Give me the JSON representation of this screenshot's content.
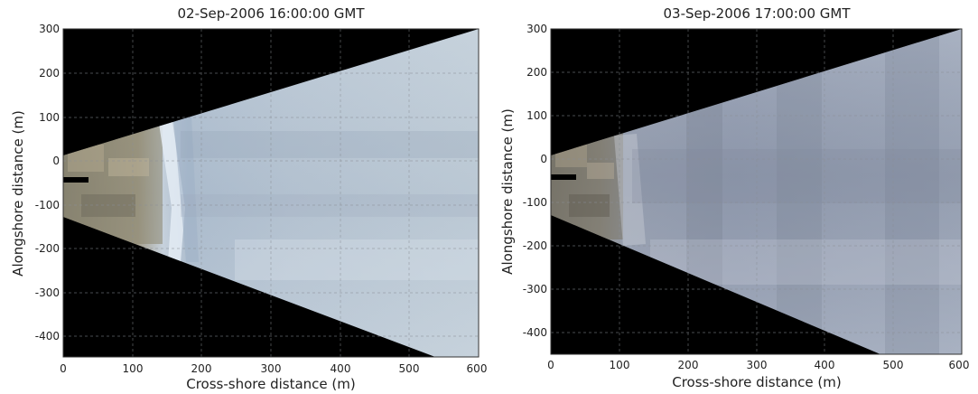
{
  "panels": [
    {
      "title": "02-Sep-2006 16:00:00 GMT",
      "xlabel": "Cross-shore distance (m)",
      "ylabel": "Alongshore distance (m)",
      "xticks": [
        "0",
        "100",
        "200",
        "300",
        "400",
        "500",
        "600"
      ],
      "yticks": [
        "300",
        "200",
        "100",
        "0",
        "-100",
        "-200",
        "-300",
        "-400"
      ],
      "xlim": [
        0,
        600
      ],
      "ylim": [
        -450,
        300
      ],
      "shoreline_x": 155,
      "description": "rectified beach camera image; sand near shore, bright swash band, blue-grey sea"
    },
    {
      "title": "03-Sep-2006 17:00:00 GMT",
      "xlabel": "Cross-shore distance (m)",
      "ylabel": "Alongshore distance (m)",
      "xticks": [
        "0",
        "100",
        "200",
        "300",
        "400",
        "500",
        "600"
      ],
      "yticks": [
        "300",
        "200",
        "100",
        "0",
        "-100",
        "-200",
        "-300",
        "-400"
      ],
      "xlim": [
        0,
        600
      ],
      "ylim": [
        -450,
        300
      ],
      "shoreline_x": 95,
      "description": "rectified beach camera image; darker sea with bands of foam"
    }
  ]
}
